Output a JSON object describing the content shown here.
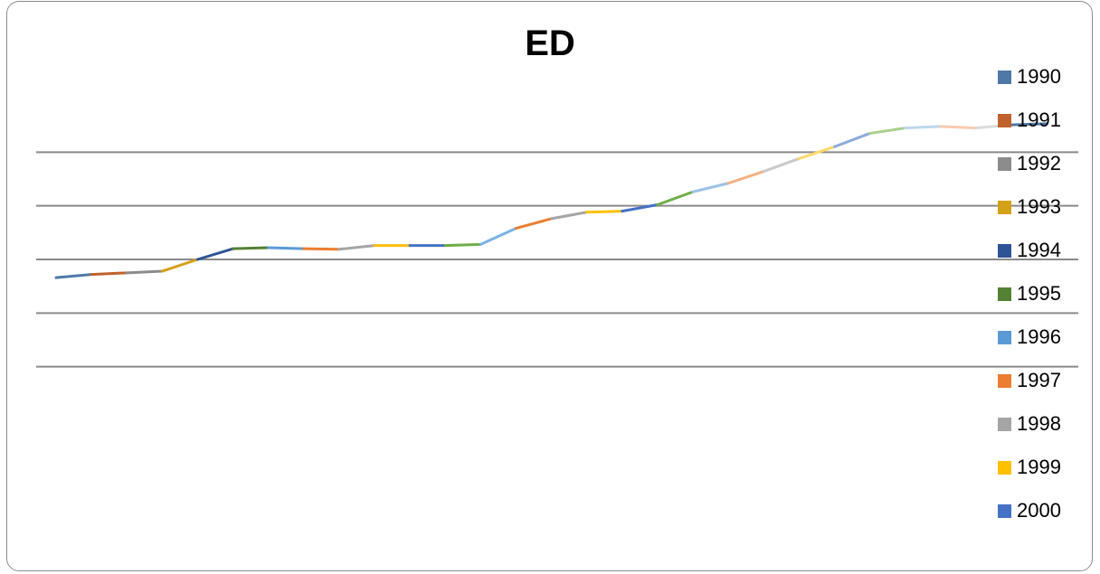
{
  "chart_data": {
    "type": "line",
    "title": "ED",
    "xlabel": "",
    "ylabel": "",
    "grid": true,
    "legend_position": "right",
    "ylim": [
      0,
      6
    ],
    "gridlines": [
      1,
      2,
      3,
      4,
      5
    ],
    "points": [
      2.66,
      2.72,
      2.75,
      2.78,
      3.0,
      3.2,
      3.22,
      3.2,
      3.19,
      3.26,
      3.26,
      3.26,
      3.28,
      3.58,
      3.76,
      3.88,
      3.9,
      4.02,
      4.26,
      4.42,
      4.64,
      4.88,
      5.1,
      5.35,
      5.45,
      5.48,
      5.45,
      5.51,
      5.53
    ],
    "series": [
      {
        "name": "1990",
        "color": "#4e79a7",
        "points": [
          0,
          1
        ]
      },
      {
        "name": "1991",
        "color": "#c0622b",
        "points": [
          0,
          1
        ]
      },
      {
        "name": "1992",
        "color": "#8c8c8c",
        "points": [
          1,
          2
        ]
      },
      {
        "name": "1993",
        "color": "#d4a017",
        "points": [
          2,
          3
        ]
      },
      {
        "name": "1994",
        "color": "#2f5496",
        "points": [
          3,
          4
        ]
      },
      {
        "name": "1995",
        "color": "#548235",
        "points": [
          4,
          5
        ]
      },
      {
        "name": "1996",
        "color": "#5b9bd5",
        "points": [
          5,
          6
        ]
      },
      {
        "name": "1997",
        "color": "#ed7d31",
        "points": [
          6,
          7
        ]
      },
      {
        "name": "1998",
        "color": "#a5a5a5",
        "points": [
          7,
          8
        ]
      },
      {
        "name": "1999",
        "color": "#ffc000",
        "points": [
          8,
          9
        ]
      },
      {
        "name": "2000",
        "color": "#4472c4",
        "points": [
          9,
          10
        ]
      },
      {
        "color": "#70ad47",
        "points": [
          10,
          11
        ]
      },
      {
        "color": "#7ab3e8",
        "points": [
          11,
          12
        ]
      },
      {
        "color": "#ed7d31",
        "points": [
          12,
          13
        ]
      },
      {
        "color": "#a5a5a5",
        "points": [
          13,
          14
        ]
      },
      {
        "color": "#ffc000",
        "points": [
          14,
          15
        ]
      },
      {
        "color": "#4472c4",
        "points": [
          15,
          16
        ]
      },
      {
        "color": "#70ad47",
        "points": [
          16,
          17
        ]
      },
      {
        "color": "#9dc3e6",
        "points": [
          17,
          18
        ]
      },
      {
        "color": "#f4b183",
        "points": [
          18,
          19
        ]
      },
      {
        "color": "#c9c9c9",
        "points": [
          19,
          20
        ]
      },
      {
        "color": "#ffd966",
        "points": [
          20,
          21
        ]
      },
      {
        "color": "#8faadc",
        "points": [
          21,
          22
        ]
      },
      {
        "color": "#a9d18e",
        "points": [
          22,
          23
        ]
      },
      {
        "color": "#bdd7ee",
        "points": [
          23,
          24
        ]
      },
      {
        "color": "#f8cbad",
        "points": [
          24,
          25
        ]
      },
      {
        "color": "#dbdbdb",
        "points": [
          25,
          26
        ]
      }
    ],
    "legend": [
      "1990",
      "1991",
      "1992",
      "1993",
      "1994",
      "1995",
      "1996",
      "1997",
      "1998",
      "1999",
      "2000"
    ]
  }
}
